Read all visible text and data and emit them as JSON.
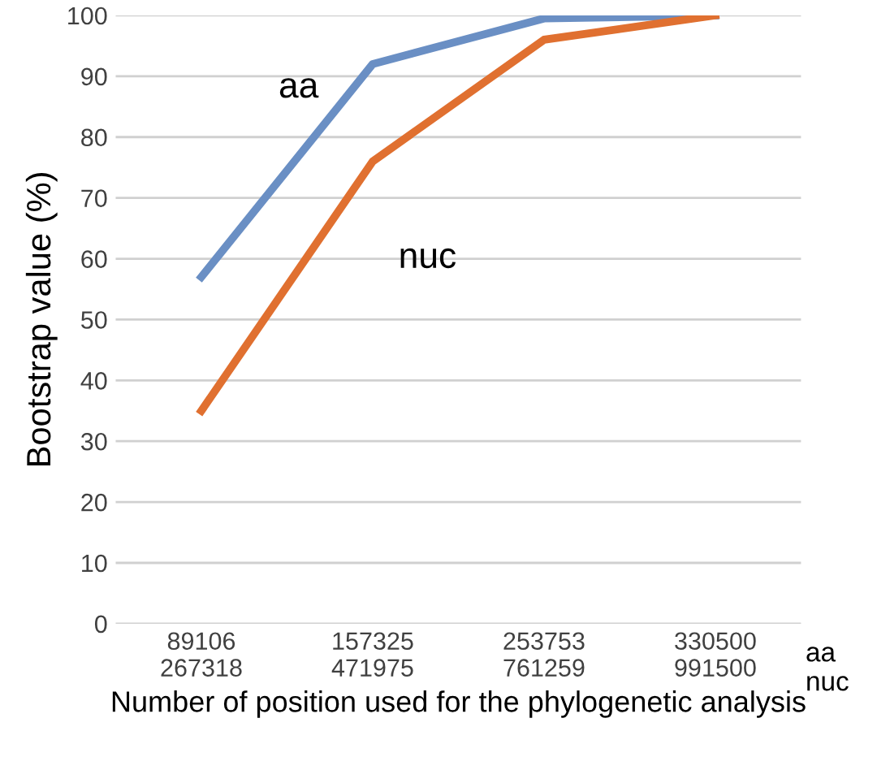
{
  "chart_data": {
    "type": "line",
    "ylabel": "Bootstrap value (%)",
    "xlabel": "Number of position used for the phylogenetic analysis",
    "categories": [
      "89106\n267318",
      "157325\n471975",
      "253753\n761259",
      "330500\n991500"
    ],
    "series": [
      {
        "name": "aa",
        "color": "#6a8fc4",
        "values": [
          57,
          92,
          99.5,
          100
        ]
      },
      {
        "name": "nuc",
        "color": "#e07030",
        "values": [
          35,
          76,
          96,
          100
        ]
      }
    ],
    "annotations": [
      "aa\nnuc"
    ],
    "ylim": [
      0,
      100
    ],
    "yticks": [
      0,
      10,
      20,
      30,
      40,
      50,
      60,
      70,
      80,
      90,
      100
    ],
    "grid": "y",
    "legend": false,
    "marker": "none",
    "line_style": "solid"
  }
}
